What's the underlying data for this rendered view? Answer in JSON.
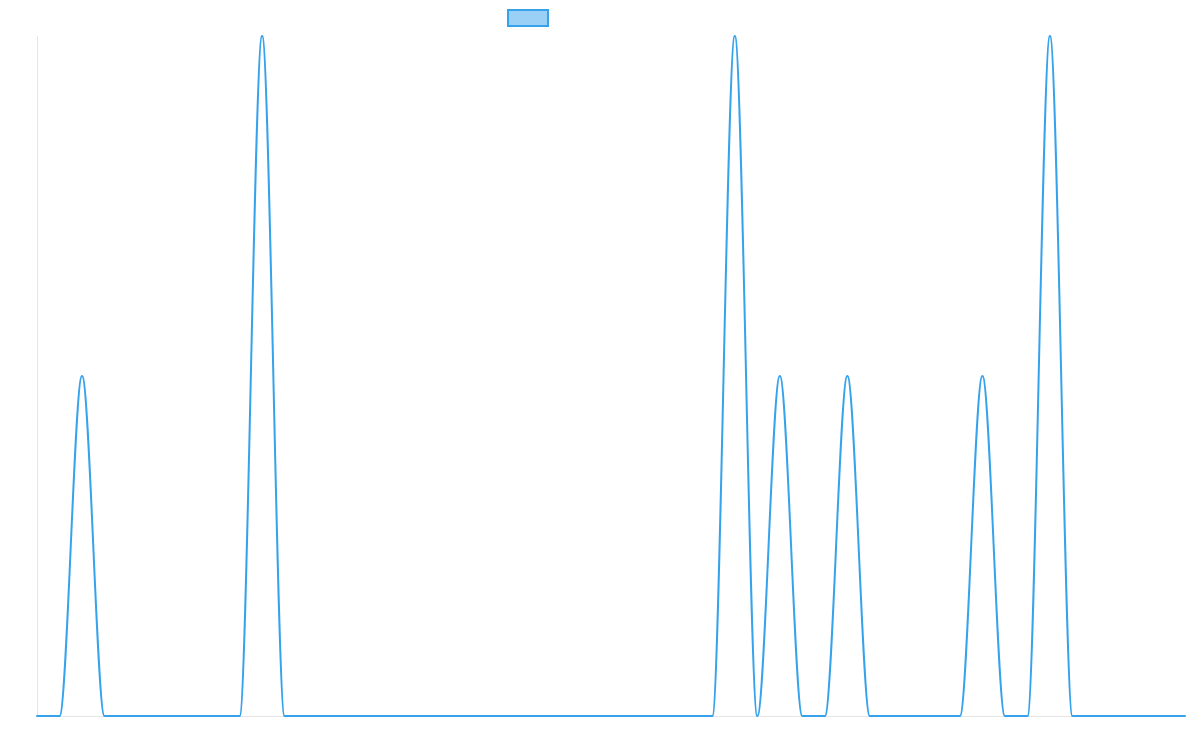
{
  "chart_data": {
    "type": "line",
    "title": "",
    "xlabel": "",
    "ylabel": "",
    "grid": false,
    "legend_position": "top-center",
    "x_range": [
      0,
      51
    ],
    "ylim": [
      0,
      2
    ],
    "series": [
      {
        "color": "#36a2eb",
        "fill": "#9ad0f5",
        "points": [
          [
            0,
            0
          ],
          [
            1,
            0
          ],
          [
            2,
            1
          ],
          [
            3,
            0
          ],
          [
            4,
            0
          ],
          [
            5,
            0
          ],
          [
            6,
            0
          ],
          [
            7,
            0
          ],
          [
            8,
            0
          ],
          [
            9,
            0
          ],
          [
            10,
            2
          ],
          [
            11,
            0
          ],
          [
            12,
            0
          ],
          [
            13,
            0
          ],
          [
            14,
            0
          ],
          [
            15,
            0
          ],
          [
            16,
            0
          ],
          [
            17,
            0
          ],
          [
            18,
            0
          ],
          [
            19,
            0
          ],
          [
            20,
            0
          ],
          [
            21,
            0
          ],
          [
            22,
            0
          ],
          [
            23,
            0
          ],
          [
            24,
            0
          ],
          [
            25,
            0
          ],
          [
            26,
            0
          ],
          [
            27,
            0
          ],
          [
            28,
            0
          ],
          [
            29,
            0
          ],
          [
            30,
            0
          ],
          [
            31,
            2
          ],
          [
            32,
            0
          ],
          [
            33,
            1
          ],
          [
            34,
            0
          ],
          [
            35,
            0
          ],
          [
            36,
            1
          ],
          [
            37,
            0
          ],
          [
            38,
            0
          ],
          [
            39,
            0
          ],
          [
            40,
            0
          ],
          [
            41,
            0
          ],
          [
            42,
            1
          ],
          [
            43,
            0
          ],
          [
            44,
            0
          ],
          [
            45,
            2
          ],
          [
            46,
            0
          ],
          [
            47,
            0
          ],
          [
            48,
            0
          ],
          [
            49,
            0
          ],
          [
            50,
            0
          ],
          [
            51,
            0
          ]
        ]
      }
    ]
  }
}
